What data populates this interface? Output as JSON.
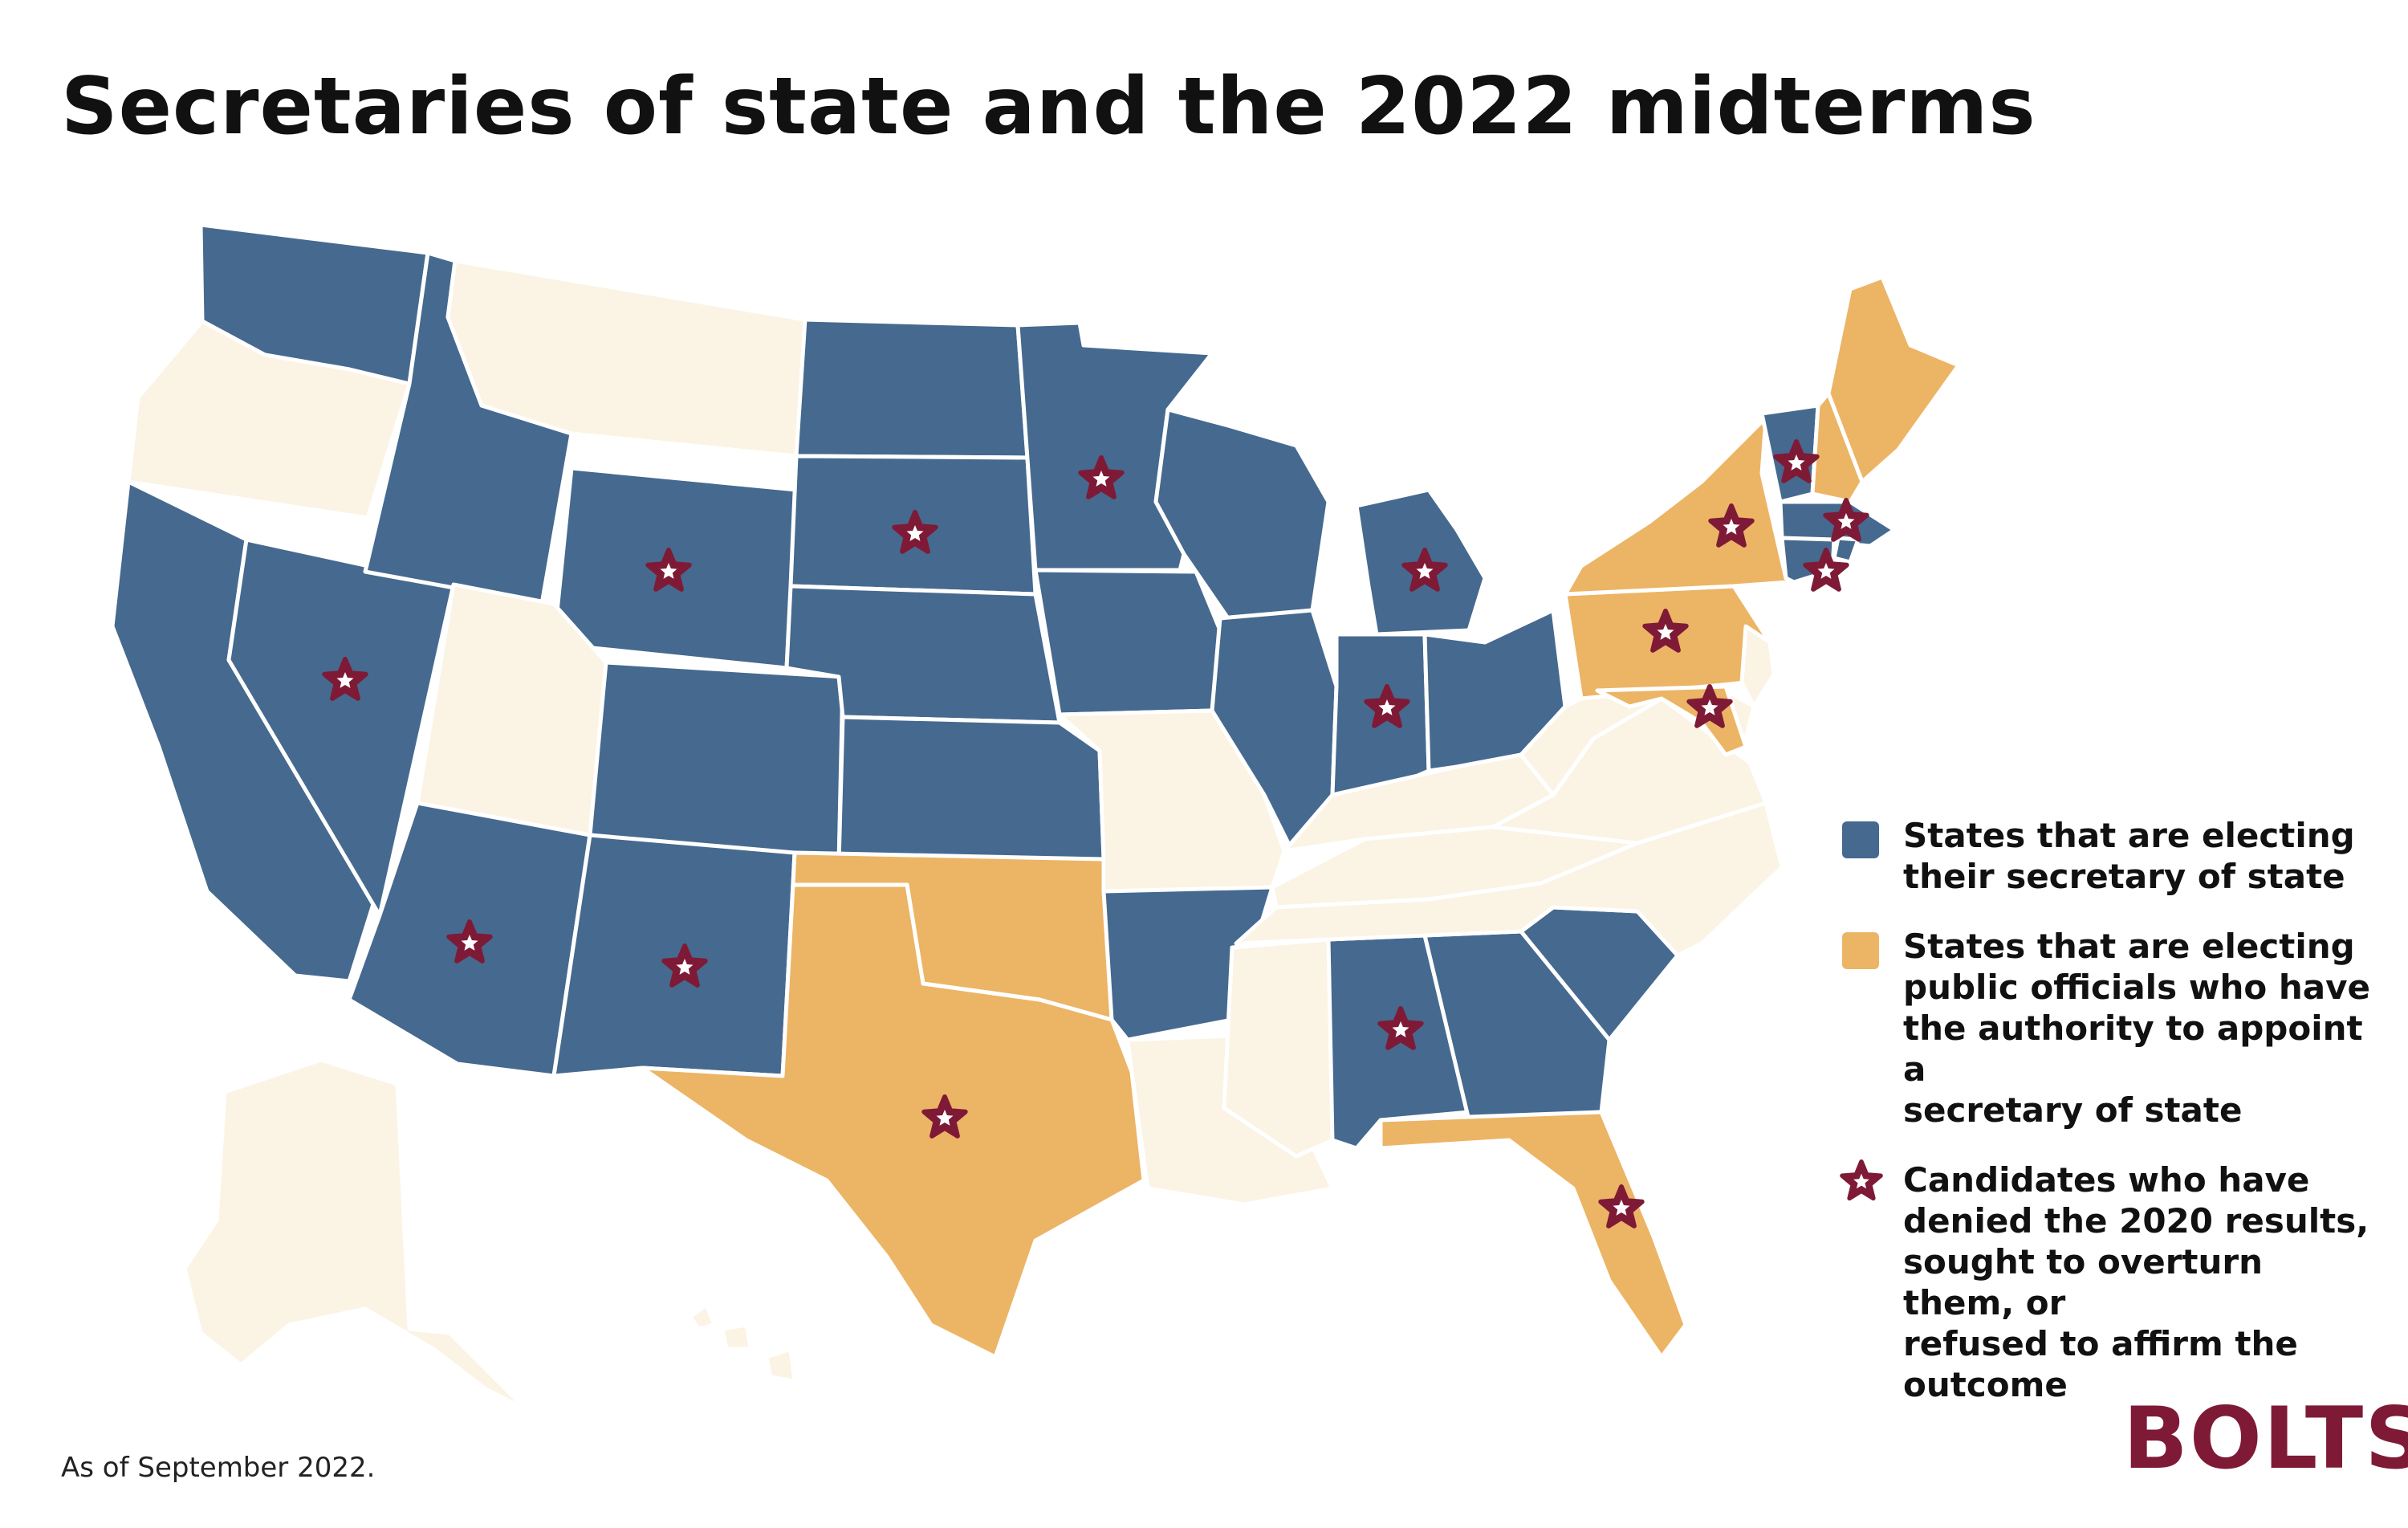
{
  "title": "Secretaries of state and the 2022 midterms",
  "footnote": "As of September 2022.",
  "logo": "BOLTS",
  "colors": {
    "electing_sos": "#46698f",
    "electing_appointers": "#ecb465",
    "not_electing": "#fbf3e4",
    "denier_star": "#7e1a36",
    "state_border": "#ffffff"
  },
  "legend": [
    {
      "key": "electing_sos",
      "text": "States that are electing\ntheir secretary of state"
    },
    {
      "key": "electing_appointers",
      "text": "States that are electing\npublic officials who have\nthe authority to appoint a\nsecretary of state"
    },
    {
      "key": "denier_star",
      "text": "Candidates who have\ndenied the 2020 results,\nsought to overturn them, or\nrefused to affirm the\noutcome"
    }
  ],
  "states": {
    "electing_sos": [
      "Washington",
      "Idaho",
      "California",
      "Nevada",
      "Wyoming",
      "Colorado",
      "Arizona",
      "New Mexico",
      "North Dakota",
      "South Dakota",
      "Nebraska",
      "Kansas",
      "Minnesota",
      "Iowa",
      "Arkansas",
      "Wisconsin",
      "Illinois",
      "Michigan",
      "Indiana",
      "Ohio",
      "Alabama",
      "Georgia",
      "South Carolina",
      "Vermont",
      "Massachusetts",
      "Connecticut",
      "Rhode Island"
    ],
    "electing_appointers": [
      "Texas",
      "Oklahoma",
      "Florida",
      "Pennsylvania",
      "New York",
      "Maine",
      "New Hampshire",
      "Maryland"
    ],
    "not_electing": [
      "Oregon",
      "Montana",
      "Utah",
      "Missouri",
      "Louisiana",
      "Mississippi",
      "Tennessee",
      "Kentucky",
      "West Virginia",
      "Virginia",
      "North Carolina",
      "New Jersey",
      "Delaware",
      "Alaska",
      "Hawaii"
    ]
  },
  "denier_candidates": [
    "Nevada",
    "Wyoming",
    "South Dakota",
    "Minnesota",
    "Michigan",
    "Indiana",
    "Arizona",
    "New Mexico",
    "Texas",
    "Alabama",
    "Florida",
    "Pennsylvania",
    "Maryland",
    "New York",
    "Vermont",
    "Massachusetts",
    "Connecticut"
  ]
}
